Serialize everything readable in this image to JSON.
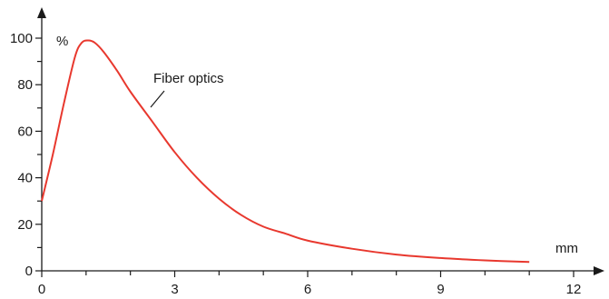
{
  "chart_data": {
    "type": "line",
    "title": "",
    "xlabel": "mm",
    "ylabel": "%",
    "xlim": [
      0,
      12
    ],
    "ylim": [
      0,
      100
    ],
    "x_ticks": [
      "0",
      "3",
      "6",
      "9",
      "12"
    ],
    "y_ticks": [
      "0",
      "20",
      "40",
      "60",
      "80",
      "100"
    ],
    "grid": false,
    "legend": "none",
    "series": [
      {
        "name": "Fiber optics",
        "color": "#e8382e",
        "x": [
          0,
          0.25,
          0.5,
          0.75,
          0.9,
          1.05,
          1.2,
          1.4,
          1.7,
          2.0,
          2.5,
          3.0,
          3.5,
          4.0,
          4.5,
          5.0,
          5.5,
          6.0,
          7.0,
          8.0,
          9.0,
          10.0,
          11.0
        ],
        "y": [
          30,
          50,
          72,
          92,
          98,
          99,
          98,
          94,
          86,
          77,
          64,
          51,
          40,
          31,
          24,
          19,
          16,
          13,
          9.5,
          7,
          5.5,
          4.5,
          3.8
        ]
      }
    ],
    "annotations": [
      {
        "text": "Fiber optics",
        "x": 2.55,
        "y": 71
      }
    ]
  }
}
